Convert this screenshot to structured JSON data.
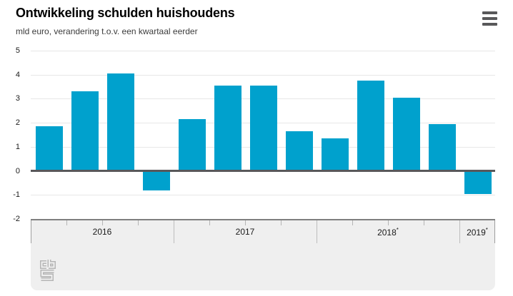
{
  "header": {
    "title": "Ontwikkeling schulden huishoudens",
    "subtitle": "mld euro, verandering t.o.v. een kwartaal eerder",
    "menu_tooltip": "menu"
  },
  "colors": {
    "bar": "#00a1cd",
    "grid": "#e7e7e7",
    "zero_line": "#58585a",
    "band_background": "#efefef",
    "band_border": "#7f7f7f",
    "menu_icon": "#58585a",
    "logo_gray": "#b5b5b5"
  },
  "chart_data": {
    "type": "bar",
    "title": "Ontwikkeling schulden huishoudens",
    "subtitle": "mld euro, verandering t.o.v. een kwartaal eerder",
    "ylabel": "mld euro",
    "xlabel": "",
    "x": [
      "2016 K1",
      "2016 K2",
      "2016 K3",
      "2016 K4",
      "2017 K1",
      "2017 K2",
      "2017 K3",
      "2017 K4",
      "2018 K1",
      "2018 K2",
      "2018 K3",
      "2018 K4",
      "2019 K1"
    ],
    "values": [
      1.85,
      3.3,
      4.05,
      -0.8,
      2.15,
      3.55,
      3.55,
      1.65,
      1.35,
      3.75,
      3.05,
      1.95,
      -0.95
    ],
    "groups": [
      {
        "label": "2016",
        "marker": "",
        "span": 4
      },
      {
        "label": "2017",
        "marker": "",
        "span": 4
      },
      {
        "label": "2018",
        "marker": "*",
        "span": 4
      },
      {
        "label": "2019",
        "marker": "*",
        "span": 1
      }
    ],
    "y_ticks": [
      5,
      4,
      3,
      2,
      1,
      0,
      -1,
      -2
    ],
    "ylim": [
      -2,
      5
    ],
    "grid": true,
    "legend": null,
    "bar_color": "#00a1cd"
  },
  "footer": {
    "logo": "cbs-logo"
  }
}
